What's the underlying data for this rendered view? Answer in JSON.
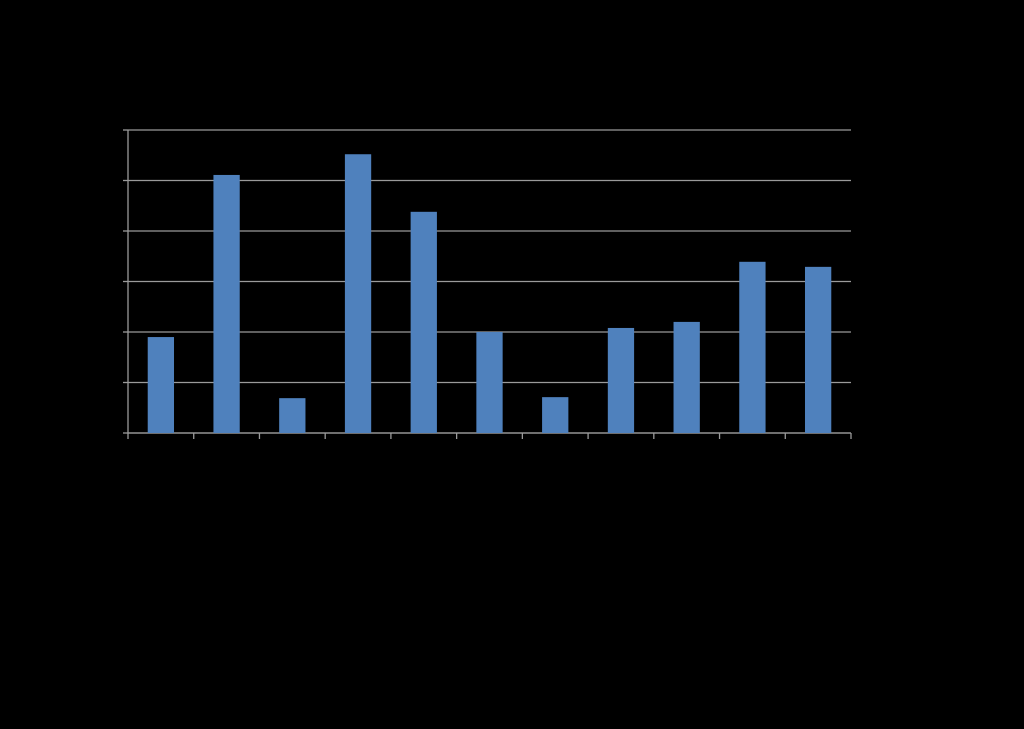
{
  "chart_data": {
    "type": "bar",
    "categories": [
      null,
      null,
      null,
      null,
      null,
      null,
      null,
      null,
      null,
      null,
      null
    ],
    "values": [
      1.9,
      5.11,
      0.69,
      5.52,
      4.38,
      2.0,
      0.71,
      2.08,
      2.2,
      3.39,
      3.29
    ],
    "color": "#4f81bd",
    "ylim": [
      0,
      6
    ],
    "yticks": [
      0,
      1,
      2,
      3,
      4,
      5,
      6
    ],
    "grid": true
  }
}
